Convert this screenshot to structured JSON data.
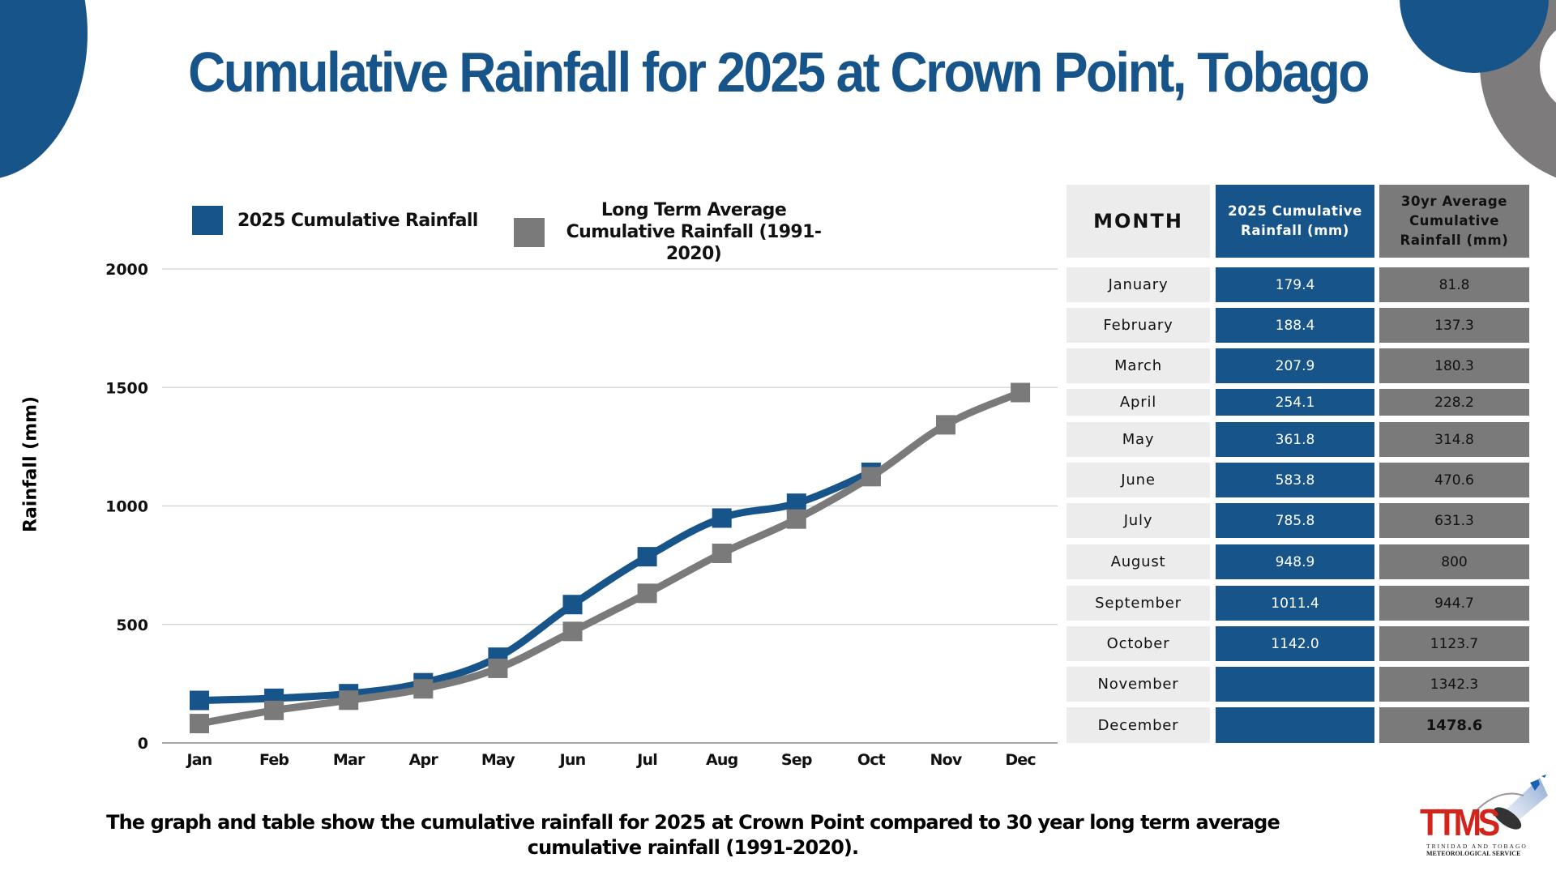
{
  "title": "Cumulative Rainfall for 2025 at Crown Point, Tobago",
  "colors": {
    "primary_blue": "#17548a",
    "gray": "#7b7a7b",
    "month_cell": "#ececec",
    "gridline": "#d0d0d0"
  },
  "legend": {
    "series_2025": "2025 Cumulative Rainfall",
    "series_avg_line1": "Long Term Average",
    "series_avg_line2": "Cumulative Rainfall (1991-2020)"
  },
  "chart_data": {
    "type": "line",
    "title": "Cumulative Rainfall for 2025 at Crown Point, Tobago",
    "xlabel": "",
    "ylabel": "Rainfall  (mm)",
    "ylim": [
      0,
      2000
    ],
    "yticks": [
      0,
      500,
      1000,
      1500,
      2000
    ],
    "grid": true,
    "legend_position": "top",
    "categories": [
      "Jan",
      "Feb",
      "Mar",
      "Apr",
      "May",
      "Jun",
      "Jul",
      "Aug",
      "Sep",
      "Oct",
      "Nov",
      "Dec"
    ],
    "series": [
      {
        "name": "2025 Cumulative Rainfall",
        "color": "#17548a",
        "values": [
          179.4,
          188.4,
          207.9,
          254.1,
          361.8,
          583.8,
          785.8,
          948.9,
          1011.4,
          1142.0,
          null,
          null
        ]
      },
      {
        "name": "Long Term Average Cumulative Rainfall (1991-2020)",
        "color": "#7b7a7b",
        "values": [
          81.8,
          137.3,
          180.3,
          228.2,
          314.8,
          470.6,
          631.3,
          800,
          944.7,
          1123.7,
          1342.3,
          1478.6
        ]
      }
    ]
  },
  "table": {
    "headers": {
      "month": "MONTH",
      "col_2025_line1": "2025 Cumulative",
      "col_2025_line2": "Rainfall (mm)",
      "col_avg_line1": "30yr Average",
      "col_avg_line2": "Cumulative",
      "col_avg_line3": "Rainfall (mm)"
    },
    "rows": [
      {
        "month": "January",
        "v2025": "179.4",
        "avg": "81.8"
      },
      {
        "month": "February",
        "v2025": "188.4",
        "avg": "137.3"
      },
      {
        "month": "March",
        "v2025": "207.9",
        "avg": "180.3"
      },
      {
        "month": "April",
        "v2025": "254.1",
        "avg": "228.2"
      },
      {
        "month": "May",
        "v2025": "361.8",
        "avg": "314.8"
      },
      {
        "month": "June",
        "v2025": "583.8",
        "avg": "470.6"
      },
      {
        "month": "July",
        "v2025": "785.8",
        "avg": "631.3"
      },
      {
        "month": "August",
        "v2025": "948.9",
        "avg": "800"
      },
      {
        "month": "September",
        "v2025": "1011.4",
        "avg": "944.7"
      },
      {
        "month": "October",
        "v2025": "1142.0",
        "avg": "1123.7"
      },
      {
        "month": "November",
        "v2025": "",
        "avg": "1342.3"
      },
      {
        "month": "December",
        "v2025": "",
        "avg": "1478.6"
      }
    ]
  },
  "caption": "The graph and table show the cumulative rainfall for 2025 at Crown Point compared to 30 year long term average cumulative rainfall (1991-2020).",
  "logo": {
    "name": "TTMS",
    "line1": "TRINIDAD AND TOBAGO",
    "line2": "METEOROLOGICAL SERVICE"
  }
}
